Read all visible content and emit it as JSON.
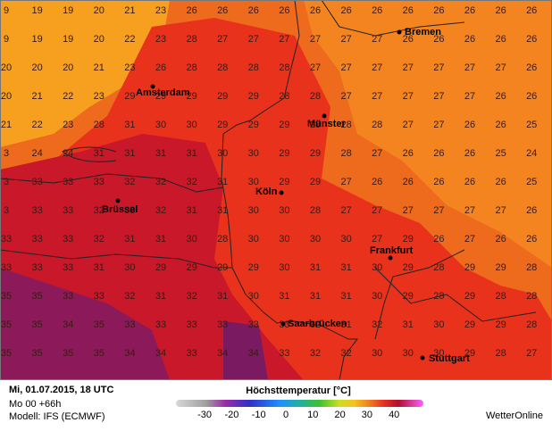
{
  "map": {
    "grid": [
      [
        9,
        19,
        19,
        20,
        21,
        23,
        26,
        26,
        26,
        26,
        26,
        26,
        26,
        26,
        26,
        26,
        26,
        26
      ],
      [
        9,
        19,
        19,
        20,
        22,
        23,
        28,
        27,
        27,
        27,
        27,
        27,
        27,
        26,
        26,
        26,
        26,
        26
      ],
      [
        20,
        20,
        20,
        21,
        23,
        26,
        28,
        28,
        28,
        28,
        27,
        27,
        27,
        27,
        27,
        27,
        27,
        26
      ],
      [
        20,
        21,
        22,
        23,
        29,
        29,
        29,
        29,
        29,
        28,
        28,
        27,
        27,
        27,
        27,
        27,
        26,
        26
      ],
      [
        21,
        22,
        23,
        28,
        31,
        30,
        30,
        29,
        29,
        29,
        28,
        28,
        28,
        27,
        27,
        26,
        26,
        25
      ],
      [
        3,
        24,
        24,
        31,
        31,
        31,
        31,
        30,
        30,
        29,
        29,
        28,
        27,
        26,
        26,
        26,
        25,
        24
      ],
      [
        3,
        33,
        33,
        33,
        32,
        32,
        32,
        31,
        30,
        29,
        29,
        27,
        26,
        26,
        26,
        26,
        26,
        25
      ],
      [
        3,
        33,
        33,
        32,
        33,
        32,
        31,
        31,
        30,
        30,
        28,
        27,
        27,
        27,
        27,
        27,
        27,
        26
      ],
      [
        33,
        33,
        33,
        32,
        31,
        31,
        30,
        28,
        30,
        30,
        30,
        30,
        27,
        29,
        26,
        27,
        26,
        26
      ],
      [
        33,
        33,
        33,
        31,
        30,
        29,
        29,
        29,
        29,
        30,
        31,
        31,
        30,
        29,
        28,
        29,
        29,
        28
      ],
      [
        35,
        35,
        33,
        33,
        32,
        31,
        32,
        31,
        30,
        31,
        31,
        31,
        30,
        29,
        28,
        29,
        28,
        28
      ],
      [
        35,
        35,
        34,
        35,
        33,
        33,
        33,
        33,
        33,
        33,
        32,
        31,
        32,
        31,
        30,
        29,
        29,
        28
      ],
      [
        35,
        35,
        35,
        35,
        34,
        34,
        33,
        34,
        34,
        33,
        32,
        32,
        30,
        30,
        30,
        29,
        28,
        27
      ]
    ],
    "cities": [
      "Bremen",
      "Amsterdam",
      "Münster",
      "Köln",
      "Brüssel",
      "Frankfurt",
      "Saarbrücken",
      "Stuttgart"
    ]
  },
  "footer": {
    "datetime": "Mi, 01.07.2015, 18 UTC",
    "run": "Mo 00 +66h",
    "model": "Modell: IFS (ECMWF)",
    "legend_title": "Höchsttemperatur [°C]",
    "legend_ticks": [
      -30,
      -20,
      -10,
      0,
      10,
      20,
      30,
      40
    ],
    "brand": "WetterOnline"
  }
}
